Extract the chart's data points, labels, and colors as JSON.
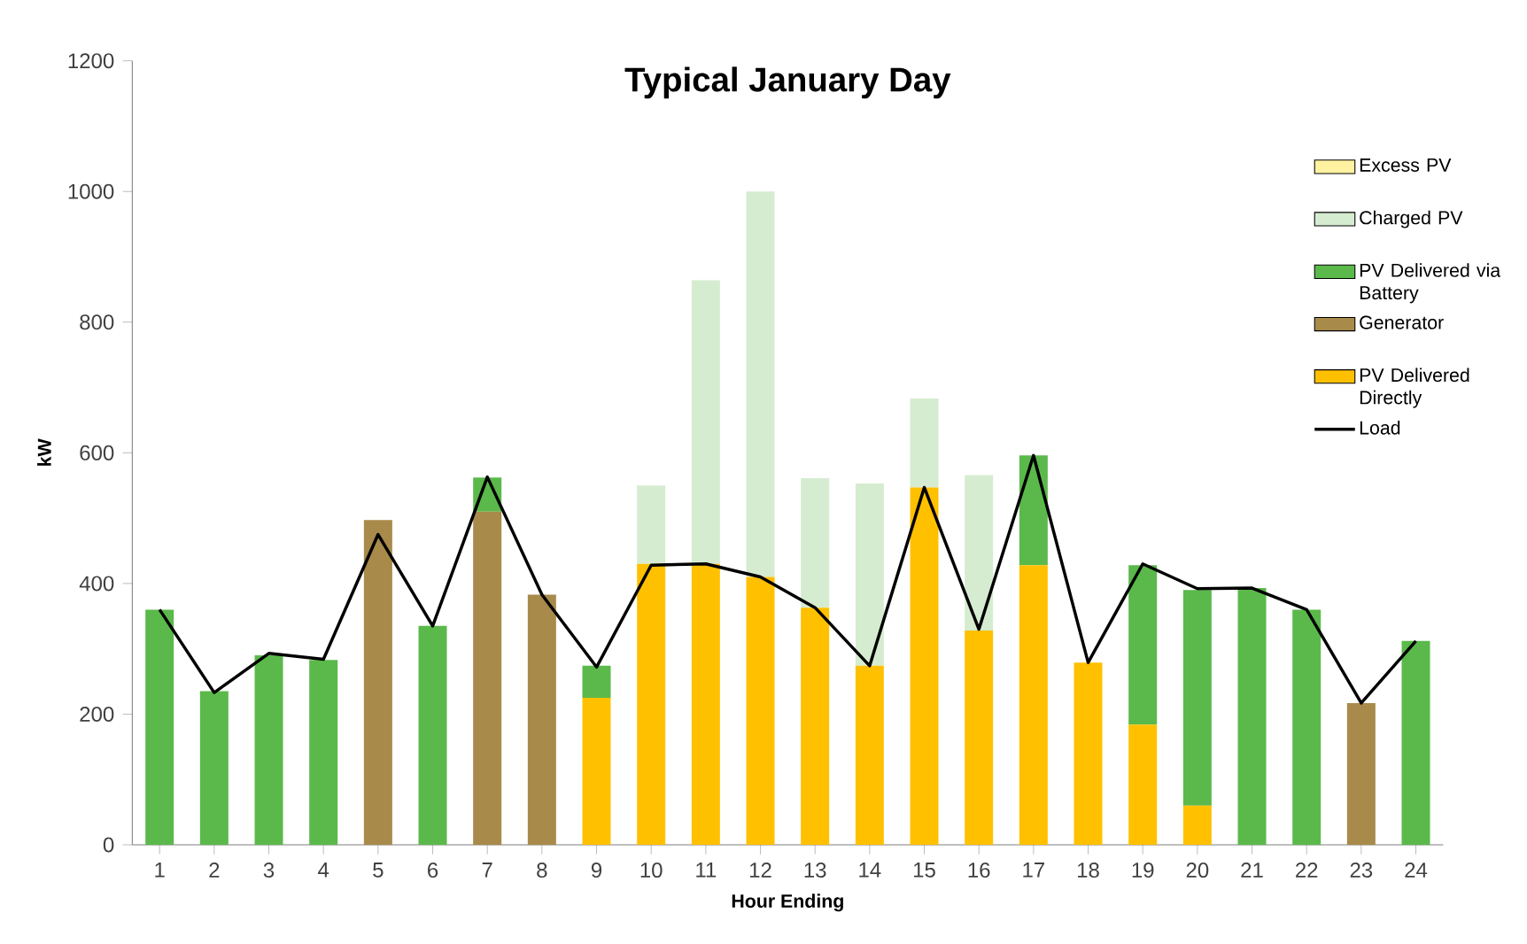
{
  "chart_data": {
    "type": "bar",
    "title": "Typical January Day",
    "xlabel": "Hour Ending",
    "ylabel": "kW",
    "stacked": true,
    "legend": "right",
    "categories": [
      "1",
      "2",
      "3",
      "4",
      "5",
      "6",
      "7",
      "8",
      "9",
      "10",
      "11",
      "12",
      "13",
      "14",
      "15",
      "16",
      "17",
      "18",
      "19",
      "20",
      "21",
      "22",
      "23",
      "24"
    ],
    "ylim": [
      0,
      1200
    ],
    "yticks": [
      0,
      200,
      400,
      600,
      800,
      1000,
      1200
    ],
    "series": [
      {
        "name": "PV Delivered Directly",
        "type": "bar",
        "color": "#ffc000",
        "values": [
          0,
          0,
          0,
          0,
          0,
          0,
          0,
          0,
          225,
          430,
          430,
          410,
          363,
          274,
          547,
          328,
          428,
          279,
          184,
          60,
          0,
          0,
          0,
          0
        ]
      },
      {
        "name": "Generator",
        "type": "bar",
        "color": "#a88a4a",
        "values": [
          0,
          0,
          0,
          0,
          497,
          0,
          510,
          383,
          0,
          0,
          0,
          0,
          0,
          0,
          0,
          0,
          0,
          0,
          0,
          0,
          0,
          0,
          217,
          0
        ]
      },
      {
        "name": "PV Delivered via Battery",
        "type": "bar",
        "color": "#5ab94a",
        "values": [
          360,
          235,
          290,
          283,
          0,
          335,
          52,
          0,
          49,
          0,
          0,
          0,
          0,
          0,
          0,
          0,
          168,
          0,
          244,
          330,
          393,
          360,
          0,
          312
        ]
      },
      {
        "name": "Charged PV",
        "type": "bar",
        "color": "#d5ecd0",
        "values": [
          0,
          0,
          0,
          0,
          0,
          0,
          0,
          0,
          0,
          120,
          434,
          590,
          198,
          279,
          136,
          238,
          0,
          0,
          0,
          0,
          0,
          0,
          0,
          0
        ]
      },
      {
        "name": "Excess PV",
        "type": "bar",
        "color": "#fff2a0",
        "values": [
          0,
          0,
          0,
          0,
          0,
          0,
          0,
          0,
          0,
          0,
          0,
          0,
          0,
          0,
          0,
          0,
          0,
          0,
          0,
          0,
          0,
          0,
          0,
          0
        ]
      },
      {
        "name": "Load",
        "type": "line",
        "color": "#000000",
        "values": [
          360,
          233,
          293,
          284,
          475,
          335,
          563,
          383,
          272,
          428,
          430,
          410,
          363,
          274,
          547,
          330,
          596,
          279,
          430,
          392,
          393,
          360,
          217,
          312
        ]
      }
    ]
  }
}
